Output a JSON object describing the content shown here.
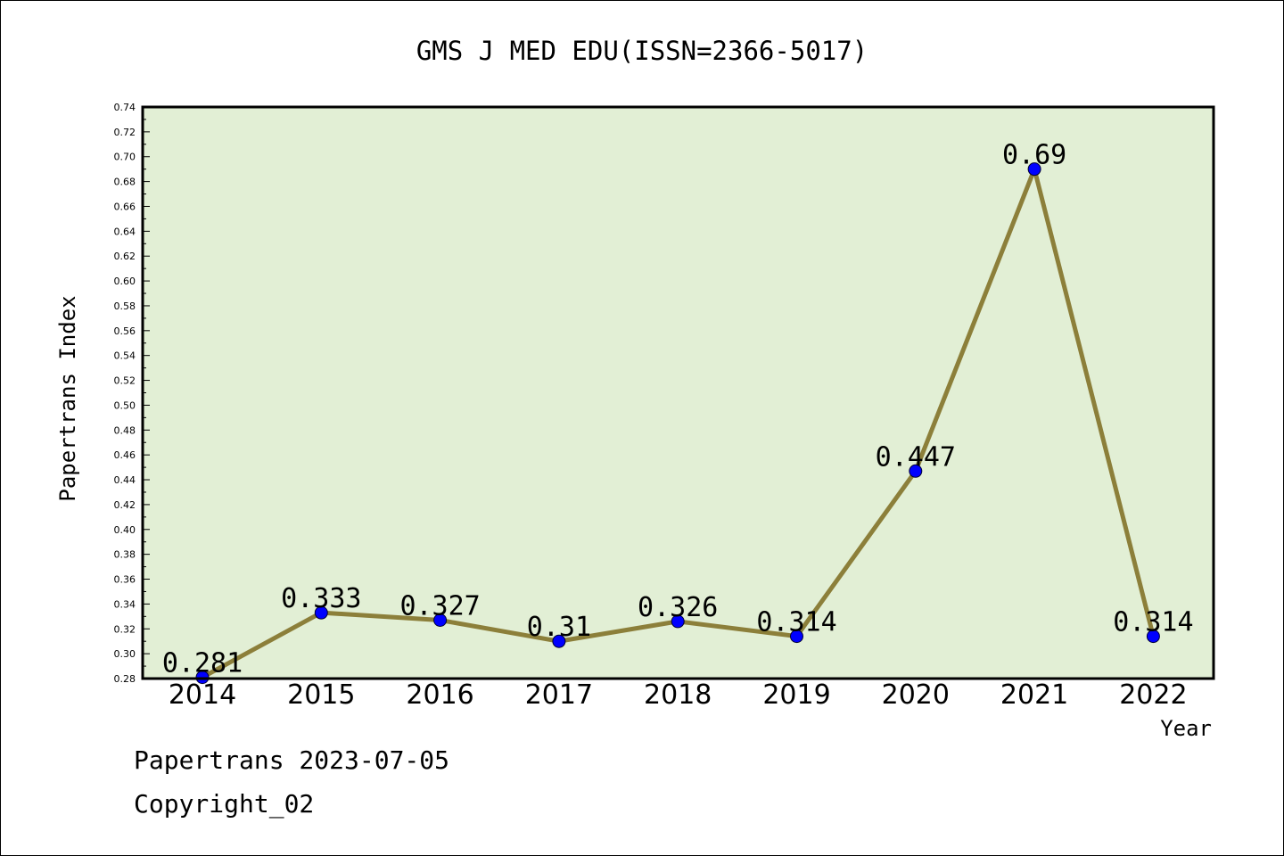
{
  "chart_data": {
    "type": "line",
    "title": "GMS J MED EDU(ISSN=2366-5017)",
    "xlabel": "Year",
    "ylabel": "Papertrans Index",
    "categories": [
      "2014",
      "2015",
      "2016",
      "2017",
      "2018",
      "2019",
      "2020",
      "2021",
      "2022"
    ],
    "series": [
      {
        "values": [
          0.281,
          0.333,
          0.327,
          0.31,
          0.326,
          0.314,
          0.447,
          0.69,
          0.314
        ],
        "labels": [
          "0.281",
          "0.333",
          "0.327",
          "0.31",
          "0.326",
          "0.314",
          "0.447",
          "0.69",
          "0.314"
        ]
      }
    ],
    "ylim": [
      0.28,
      0.74
    ],
    "yticks": [
      "0.28",
      "0.30",
      "0.32",
      "0.34",
      "0.36",
      "0.38",
      "0.40",
      "0.42",
      "0.44",
      "0.46",
      "0.48",
      "0.50",
      "0.52",
      "0.54",
      "0.56",
      "0.58",
      "0.60",
      "0.62",
      "0.64",
      "0.66",
      "0.68",
      "0.70",
      "0.72",
      "0.74"
    ],
    "grid": false,
    "legend": "none",
    "colors": {
      "plot_background": "#e2efd5",
      "line": "#8c7f3a",
      "marker": "#0000ff"
    }
  },
  "footer": {
    "date_line": "Papertrans 2023-07-05",
    "copyright": "Copyright_02"
  }
}
